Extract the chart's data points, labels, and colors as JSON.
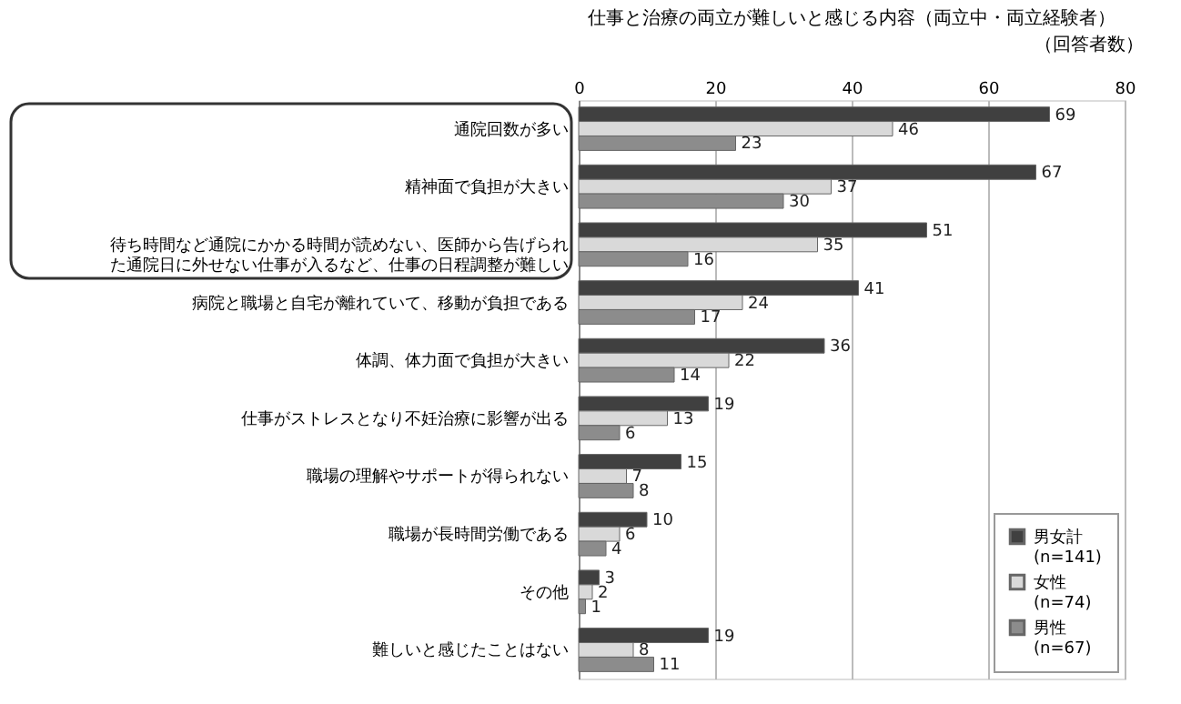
{
  "chart_data": {
    "type": "bar",
    "orientation": "horizontal",
    "title": "仕事と治療の両立が難しいと感じる内容（両立中・両立経験者）",
    "xlabel": "（回答者数）",
    "categories": [
      "通院回数が多い",
      "精神面で負担が大きい",
      "待ち時間など通院にかかる時間が読めない、医師から告げられた通院日に外せない仕事が入るなど、仕事の日程調整が難しい",
      "病院と職場と自宅が離れていて、移動が負担である",
      "体調、体力面で負担が大きい",
      "仕事がストレスとなり不妊治療に影響が出る",
      "職場の理解やサポートが得られない",
      "職場が長時間労働である",
      "その他",
      "難しいと感じたことはない"
    ],
    "series": [
      {
        "name": "男女計(n=141)",
        "color": "#404040",
        "values": [
          69,
          67,
          51,
          41,
          36,
          19,
          15,
          10,
          3,
          19
        ]
      },
      {
        "name": "女性(n=74)",
        "color": "#d9d9d9",
        "values": [
          46,
          37,
          35,
          24,
          22,
          13,
          7,
          6,
          2,
          8
        ]
      },
      {
        "name": "男性(n=67)",
        "color": "#8c8c8c",
        "values": [
          23,
          30,
          16,
          17,
          14,
          6,
          8,
          4,
          1,
          11
        ]
      }
    ],
    "xlim": [
      0,
      80
    ],
    "xticks": [
      0,
      20,
      40,
      60,
      80
    ],
    "grid": "x",
    "legend": "bottom right",
    "data_labels": true
  }
}
